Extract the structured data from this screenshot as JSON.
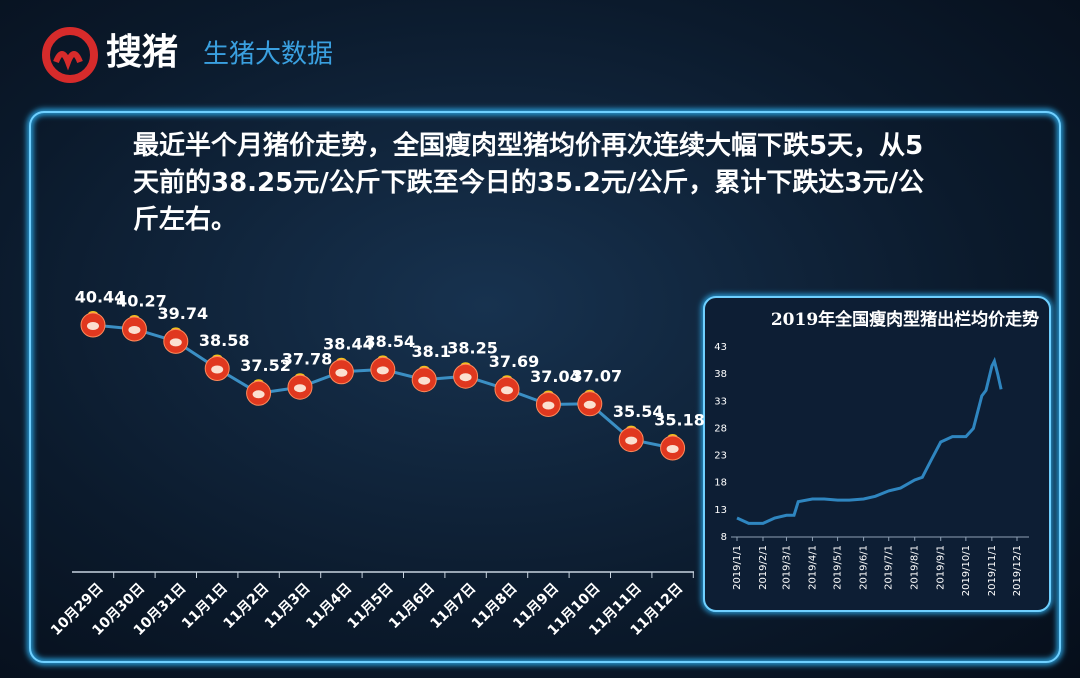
{
  "header": {
    "brand": "搜猪",
    "subtitle": "生猪大数据"
  },
  "headline": "最近半个月猪价走势，全国瘦肉型猪均价再次连续大幅下跌5天，从5天前的38.25元/公斤下跌至今日的35.2元/公斤，累计下跌达3元/公斤左右。",
  "chart_data": [
    {
      "type": "line",
      "categories": [
        "10月29日",
        "10月30日",
        "10月31日",
        "11月1日",
        "11月2日",
        "11月3日",
        "11月4日",
        "11月5日",
        "11月6日",
        "11月7日",
        "11月8日",
        "11月9日",
        "11月10日",
        "11月11日",
        "11月12日"
      ],
      "values": [
        40.44,
        40.27,
        39.74,
        38.58,
        37.52,
        37.78,
        38.44,
        38.54,
        38.1,
        38.25,
        37.69,
        37.04,
        37.07,
        35.54,
        35.18
      ],
      "color": "#3b8fc4",
      "marker_color": "#e0381f"
    },
    {
      "type": "line",
      "title": "2019年全国瘦肉型猪出栏均价走势",
      "x": [
        "2019/1/1",
        "2019/1/15",
        "2019/2/1",
        "2019/2/15",
        "2019/3/1",
        "2019/3/10",
        "2019/3/15",
        "2019/4/1",
        "2019/4/15",
        "2019/5/1",
        "2019/5/15",
        "2019/6/1",
        "2019/6/15",
        "2019/7/1",
        "2019/7/15",
        "2019/8/1",
        "2019/8/10",
        "2019/8/20",
        "2019/9/1",
        "2019/9/15",
        "2019/10/1",
        "2019/10/10",
        "2019/10/20",
        "2019/10/25",
        "2019/11/1",
        "2019/11/4",
        "2019/11/8",
        "2019/11/12"
      ],
      "values": [
        11.5,
        10.5,
        10.5,
        11.5,
        12,
        12,
        14.5,
        15,
        15,
        14.8,
        14.8,
        15,
        15.5,
        16.5,
        17,
        18.5,
        19,
        22,
        25.5,
        26.5,
        26.5,
        28,
        34,
        35,
        39.5,
        40.4,
        38,
        35.2
      ],
      "color": "#2f86c0",
      "xlim": [
        "2019/1/1",
        "2019/12/1"
      ],
      "xticks": [
        "2019/1/1",
        "2019/2/1",
        "2019/3/1",
        "2019/4/1",
        "2019/5/1",
        "2019/6/1",
        "2019/7/1",
        "2019/8/1",
        "2019/9/1",
        "2019/10/1",
        "2019/11/1",
        "2019/12/1"
      ],
      "ylim": [
        8,
        43
      ],
      "yticks": [
        8,
        13,
        18,
        23,
        28,
        33,
        38,
        43
      ]
    }
  ]
}
